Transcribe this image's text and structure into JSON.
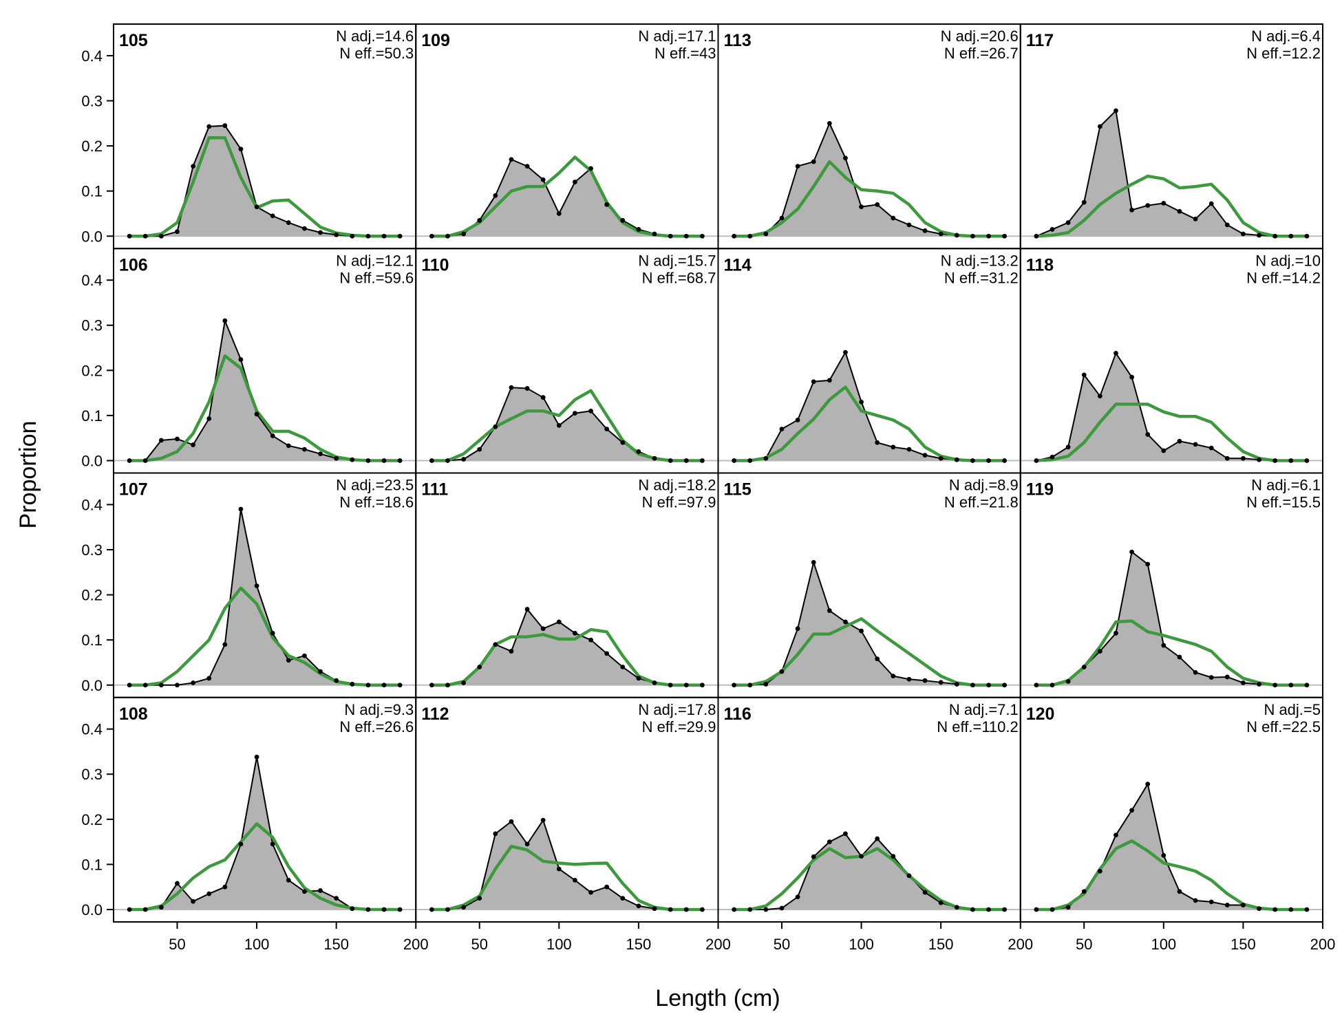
{
  "colors": {
    "observed_fill": "#b3b3b3",
    "observed_line": "#000000",
    "expected_line": "#3c9a3c",
    "zero_line": "#bdbdbd"
  },
  "chart_data": {
    "type": "area",
    "xlabel": "Length (cm)",
    "ylabel": "Proportion",
    "xlim": [
      10,
      200
    ],
    "ylim": [
      0,
      0.47
    ],
    "x_ticks": [
      50,
      100,
      150,
      200
    ],
    "y_ticks": [
      0.0,
      0.1,
      0.2,
      0.3,
      0.4
    ],
    "x": [
      20,
      30,
      40,
      50,
      60,
      70,
      80,
      90,
      100,
      110,
      120,
      130,
      140,
      150,
      160,
      170,
      180,
      190
    ],
    "grid": false,
    "legend": "none",
    "panels": [
      {
        "id": "105",
        "n_adj": "N adj.=14.6",
        "n_eff": "N eff.=50.3",
        "observed": [
          0,
          0,
          0,
          0.01,
          0.155,
          0.243,
          0.245,
          0.193,
          0.065,
          0.045,
          0.03,
          0.017,
          0.008,
          0.003,
          0,
          0,
          0,
          0
        ],
        "expected": [
          0,
          0,
          0.005,
          0.03,
          0.12,
          0.218,
          0.218,
          0.13,
          0.063,
          0.078,
          0.08,
          0.05,
          0.02,
          0.007,
          0.002,
          0,
          0,
          0
        ]
      },
      {
        "id": "106",
        "n_adj": "N adj.=12.1",
        "n_eff": "N eff.=59.6",
        "observed": [
          0,
          0,
          0.045,
          0.048,
          0.035,
          0.093,
          0.31,
          0.224,
          0.103,
          0.055,
          0.033,
          0.025,
          0.015,
          0.005,
          0.002,
          0,
          0,
          0
        ],
        "expected": [
          0,
          0,
          0.005,
          0.02,
          0.06,
          0.13,
          0.232,
          0.205,
          0.11,
          0.065,
          0.065,
          0.05,
          0.025,
          0.008,
          0.002,
          0,
          0,
          0
        ]
      },
      {
        "id": "107",
        "n_adj": "N adj.=23.5",
        "n_eff": "N eff.=18.6",
        "observed": [
          0,
          0,
          0,
          0,
          0.005,
          0.015,
          0.09,
          0.39,
          0.22,
          0.115,
          0.055,
          0.065,
          0.03,
          0.01,
          0.002,
          0,
          0,
          0
        ],
        "expected": [
          0,
          0,
          0.005,
          0.03,
          0.065,
          0.1,
          0.17,
          0.215,
          0.18,
          0.105,
          0.065,
          0.05,
          0.025,
          0.008,
          0.002,
          0,
          0,
          0
        ]
      },
      {
        "id": "108",
        "n_adj": "N adj.=9.3",
        "n_eff": "N eff.=26.6",
        "observed": [
          0,
          0,
          0.005,
          0.058,
          0.018,
          0.035,
          0.05,
          0.145,
          0.338,
          0.145,
          0.065,
          0.04,
          0.042,
          0.025,
          0.002,
          0,
          0,
          0
        ],
        "expected": [
          0,
          0,
          0.008,
          0.035,
          0.07,
          0.095,
          0.11,
          0.15,
          0.19,
          0.16,
          0.095,
          0.048,
          0.025,
          0.01,
          0.003,
          0,
          0,
          0
        ]
      },
      {
        "id": "109",
        "n_adj": "N adj.=17.1",
        "n_eff": "N eff.=43",
        "observed": [
          0,
          0,
          0.005,
          0.035,
          0.09,
          0.17,
          0.155,
          0.125,
          0.05,
          0.12,
          0.15,
          0.07,
          0.035,
          0.015,
          0.005,
          0,
          0,
          0
        ],
        "expected": [
          0,
          0,
          0.01,
          0.03,
          0.065,
          0.1,
          0.11,
          0.11,
          0.14,
          0.175,
          0.145,
          0.075,
          0.03,
          0.01,
          0.003,
          0,
          0,
          0
        ]
      },
      {
        "id": "110",
        "n_adj": "N adj.=15.7",
        "n_eff": "N eff.=68.7",
        "observed": [
          0,
          0,
          0.003,
          0.025,
          0.075,
          0.162,
          0.16,
          0.14,
          0.078,
          0.105,
          0.11,
          0.07,
          0.04,
          0.02,
          0.005,
          0,
          0,
          0
        ],
        "expected": [
          0,
          0,
          0.015,
          0.045,
          0.075,
          0.093,
          0.11,
          0.11,
          0.1,
          0.135,
          0.155,
          0.1,
          0.045,
          0.015,
          0.005,
          0,
          0,
          0
        ]
      },
      {
        "id": "111",
        "n_adj": "N adj.=18.2",
        "n_eff": "N eff.=97.9",
        "observed": [
          0,
          0,
          0.005,
          0.04,
          0.09,
          0.075,
          0.168,
          0.125,
          0.14,
          0.115,
          0.1,
          0.07,
          0.04,
          0.015,
          0.005,
          0,
          0,
          0
        ],
        "expected": [
          0,
          0,
          0.008,
          0.04,
          0.09,
          0.107,
          0.107,
          0.112,
          0.102,
          0.102,
          0.123,
          0.118,
          0.065,
          0.02,
          0.005,
          0,
          0,
          0
        ]
      },
      {
        "id": "112",
        "n_adj": "N adj.=17.8",
        "n_eff": "N eff.=29.9",
        "observed": [
          0,
          0,
          0.005,
          0.025,
          0.168,
          0.195,
          0.145,
          0.198,
          0.09,
          0.065,
          0.038,
          0.05,
          0.025,
          0.008,
          0.002,
          0,
          0,
          0
        ],
        "expected": [
          0,
          0,
          0.01,
          0.03,
          0.09,
          0.14,
          0.132,
          0.107,
          0.103,
          0.1,
          0.102,
          0.103,
          0.058,
          0.02,
          0.005,
          0,
          0,
          0
        ]
      },
      {
        "id": "113",
        "n_adj": "N adj.=20.6",
        "n_eff": "N eff.=26.7",
        "observed": [
          0,
          0,
          0.005,
          0.04,
          0.155,
          0.165,
          0.25,
          0.173,
          0.065,
          0.07,
          0.04,
          0.025,
          0.012,
          0.005,
          0.002,
          0,
          0,
          0
        ],
        "expected": [
          0,
          0,
          0.008,
          0.03,
          0.06,
          0.11,
          0.165,
          0.13,
          0.103,
          0.1,
          0.095,
          0.07,
          0.03,
          0.01,
          0.002,
          0,
          0,
          0
        ]
      },
      {
        "id": "114",
        "n_adj": "N adj.=13.2",
        "n_eff": "N eff.=31.2",
        "observed": [
          0,
          0,
          0.005,
          0.07,
          0.09,
          0.175,
          0.178,
          0.24,
          0.13,
          0.04,
          0.03,
          0.025,
          0.012,
          0.005,
          0.002,
          0,
          0,
          0
        ],
        "expected": [
          0,
          0,
          0.006,
          0.025,
          0.06,
          0.092,
          0.135,
          0.163,
          0.11,
          0.1,
          0.09,
          0.07,
          0.03,
          0.01,
          0.002,
          0,
          0,
          0
        ]
      },
      {
        "id": "115",
        "n_adj": "N adj.=8.9",
        "n_eff": "N eff.=21.8",
        "observed": [
          0,
          0,
          0.002,
          0.03,
          0.125,
          0.272,
          0.165,
          0.14,
          0.12,
          0.058,
          0.02,
          0.013,
          0.01,
          0.006,
          0.002,
          0,
          0,
          0
        ],
        "expected": [
          0,
          0,
          0.008,
          0.03,
          0.068,
          0.113,
          0.113,
          0.13,
          0.147,
          0.12,
          0.095,
          0.07,
          0.045,
          0.02,
          0.005,
          0,
          0,
          0
        ]
      },
      {
        "id": "116",
        "n_adj": "N adj.=7.1",
        "n_eff": "N eff.=110.2",
        "observed": [
          0,
          0,
          0,
          0.003,
          0.028,
          0.117,
          0.15,
          0.168,
          0.118,
          0.157,
          0.118,
          0.075,
          0.038,
          0.015,
          0.005,
          0,
          0,
          0
        ],
        "expected": [
          0,
          0,
          0.008,
          0.035,
          0.07,
          0.11,
          0.135,
          0.115,
          0.118,
          0.135,
          0.11,
          0.075,
          0.045,
          0.02,
          0.005,
          0,
          0,
          0
        ]
      },
      {
        "id": "117",
        "n_adj": "N adj.=6.4",
        "n_eff": "N eff.=12.2",
        "observed": [
          0,
          0.015,
          0.03,
          0.075,
          0.243,
          0.278,
          0.058,
          0.068,
          0.073,
          0.055,
          0.038,
          0.072,
          0.025,
          0.005,
          0.002,
          0,
          0,
          0
        ],
        "expected": [
          0,
          0.002,
          0.008,
          0.035,
          0.07,
          0.095,
          0.115,
          0.133,
          0.127,
          0.107,
          0.11,
          0.115,
          0.08,
          0.03,
          0.008,
          0,
          0,
          0
        ]
      },
      {
        "id": "118",
        "n_adj": "N adj.=10",
        "n_eff": "N eff.=14.2",
        "observed": [
          0,
          0.008,
          0.03,
          0.19,
          0.143,
          0.238,
          0.185,
          0.058,
          0.022,
          0.043,
          0.036,
          0.028,
          0.005,
          0.005,
          0.002,
          0,
          0,
          0
        ],
        "expected": [
          0,
          0.002,
          0.01,
          0.04,
          0.085,
          0.125,
          0.125,
          0.125,
          0.108,
          0.098,
          0.098,
          0.085,
          0.05,
          0.02,
          0.005,
          0,
          0,
          0
        ]
      },
      {
        "id": "119",
        "n_adj": "N adj.=6.1",
        "n_eff": "N eff.=15.5",
        "observed": [
          0,
          0,
          0.008,
          0.04,
          0.075,
          0.115,
          0.295,
          0.268,
          0.088,
          0.062,
          0.028,
          0.017,
          0.018,
          0.005,
          0.002,
          0,
          0,
          0
        ],
        "expected": [
          0,
          0,
          0.01,
          0.04,
          0.085,
          0.14,
          0.142,
          0.118,
          0.11,
          0.1,
          0.09,
          0.075,
          0.04,
          0.015,
          0.005,
          0,
          0,
          0
        ]
      },
      {
        "id": "120",
        "n_adj": "N adj.=5",
        "n_eff": "N eff.=22.5",
        "observed": [
          0,
          0,
          0.005,
          0.04,
          0.085,
          0.165,
          0.22,
          0.278,
          0.12,
          0.04,
          0.02,
          0.017,
          0.01,
          0.01,
          0.002,
          0,
          0,
          0
        ],
        "expected": [
          0,
          0,
          0.01,
          0.035,
          0.09,
          0.135,
          0.152,
          0.13,
          0.103,
          0.095,
          0.085,
          0.065,
          0.035,
          0.012,
          0.003,
          0,
          0,
          0
        ]
      }
    ]
  }
}
